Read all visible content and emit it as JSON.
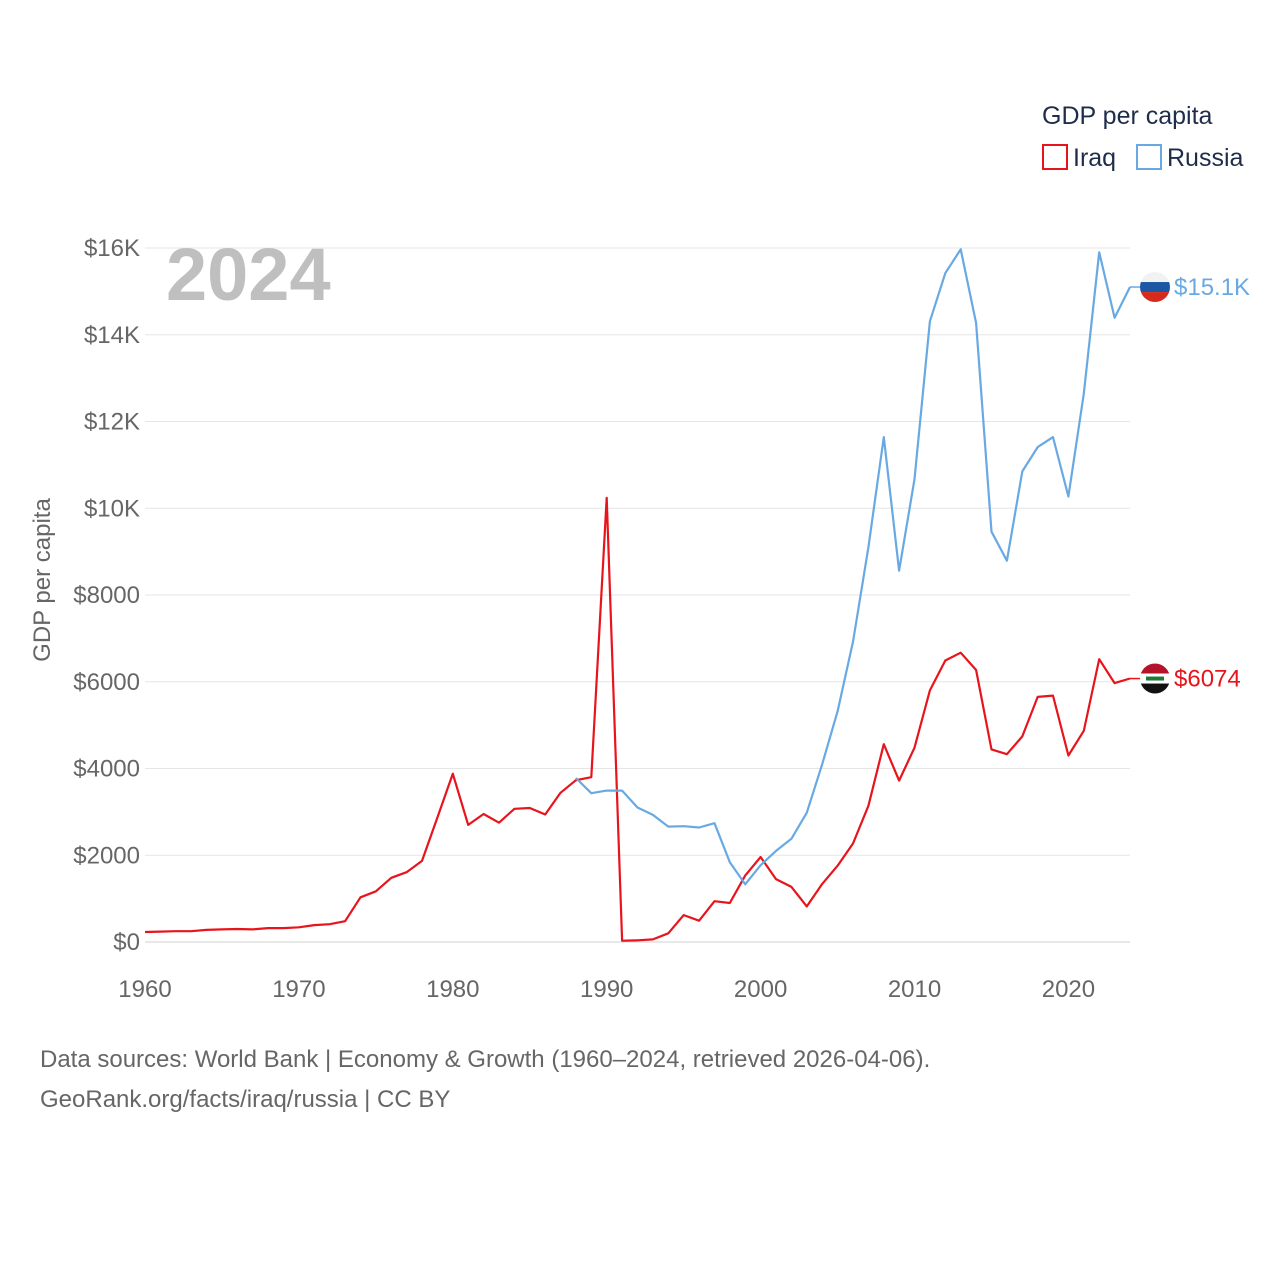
{
  "chart_data": {
    "type": "line",
    "year_label": "2024",
    "ylabel": "GDP per capita",
    "xlim": [
      1960,
      2024
    ],
    "ylim": [
      0,
      16000
    ],
    "y_ticks": [
      {
        "value": 0,
        "label": "$0"
      },
      {
        "value": 2000,
        "label": "$2000"
      },
      {
        "value": 4000,
        "label": "$4000"
      },
      {
        "value": 6000,
        "label": "$6000"
      },
      {
        "value": 8000,
        "label": "$8000"
      },
      {
        "value": 10000,
        "label": "$10K"
      },
      {
        "value": 12000,
        "label": "$12K"
      },
      {
        "value": 14000,
        "label": "$14K"
      },
      {
        "value": 16000,
        "label": "$16K"
      }
    ],
    "x_ticks": [
      {
        "value": 1960,
        "label": "1960"
      },
      {
        "value": 1970,
        "label": "1970"
      },
      {
        "value": 1980,
        "label": "1980"
      },
      {
        "value": 1990,
        "label": "1990"
      },
      {
        "value": 2000,
        "label": "2000"
      },
      {
        "value": 2010,
        "label": "2010"
      },
      {
        "value": 2020,
        "label": "2020"
      }
    ],
    "legend": {
      "title": "GDP per capita",
      "position": "top-right"
    },
    "series": [
      {
        "name": "Iraq",
        "color": "#e8141c",
        "end_label": "$6074",
        "flag": "iraq-flag",
        "x": [
          1960,
          1961,
          1962,
          1963,
          1964,
          1965,
          1966,
          1967,
          1968,
          1969,
          1970,
          1971,
          1972,
          1973,
          1974,
          1975,
          1976,
          1977,
          1978,
          1979,
          1980,
          1981,
          1982,
          1983,
          1984,
          1985,
          1986,
          1987,
          1988,
          1989,
          1990,
          1991,
          1992,
          1993,
          1994,
          1995,
          1996,
          1997,
          1998,
          1999,
          2000,
          2001,
          2002,
          2003,
          2004,
          2005,
          2006,
          2007,
          2008,
          2009,
          2010,
          2011,
          2012,
          2013,
          2014,
          2015,
          2016,
          2017,
          2018,
          2019,
          2020,
          2021,
          2022,
          2023,
          2024
        ],
        "values": [
          230,
          240,
          250,
          250,
          280,
          290,
          300,
          290,
          320,
          320,
          340,
          390,
          410,
          480,
          1030,
          1170,
          1480,
          1610,
          1870,
          2870,
          3880,
          2700,
          2950,
          2750,
          3070,
          3090,
          2940,
          3440,
          3730,
          3800,
          10240,
          30,
          40,
          60,
          200,
          620,
          490,
          940,
          900,
          1530,
          1960,
          1450,
          1270,
          820,
          1340,
          1760,
          2270,
          3140,
          4560,
          3720,
          4480,
          5800,
          6490,
          6670,
          6270,
          4440,
          4330,
          4740,
          5650,
          5680,
          4300,
          4870,
          6520,
          5970,
          6074
        ]
      },
      {
        "name": "Russia",
        "color": "#69a9e3",
        "end_label": "$15.1K",
        "flag": "russia-flag",
        "x": [
          1988,
          1989,
          1990,
          1991,
          1992,
          1993,
          1994,
          1995,
          1996,
          1997,
          1998,
          1999,
          2000,
          2001,
          2002,
          2003,
          2004,
          2005,
          2006,
          2007,
          2008,
          2009,
          2010,
          2011,
          2012,
          2013,
          2014,
          2015,
          2016,
          2017,
          2018,
          2019,
          2020,
          2021,
          2022,
          2023,
          2024
        ],
        "values": [
          3780,
          3430,
          3490,
          3490,
          3100,
          2930,
          2660,
          2670,
          2640,
          2740,
          1840,
          1330,
          1770,
          2100,
          2380,
          2980,
          4100,
          5320,
          6920,
          9100,
          11640,
          8560,
          10670,
          14310,
          15420,
          15970,
          14270,
          9460,
          8790,
          10850,
          11410,
          11640,
          10270,
          12640,
          15900,
          14390,
          15100
        ]
      }
    ]
  },
  "footer": {
    "line1": "Data sources: World Bank | Economy & Growth (1960–2024, retrieved 2026-04-06).",
    "line2": "GeoRank.org/facts/iraq/russia | CC BY"
  }
}
